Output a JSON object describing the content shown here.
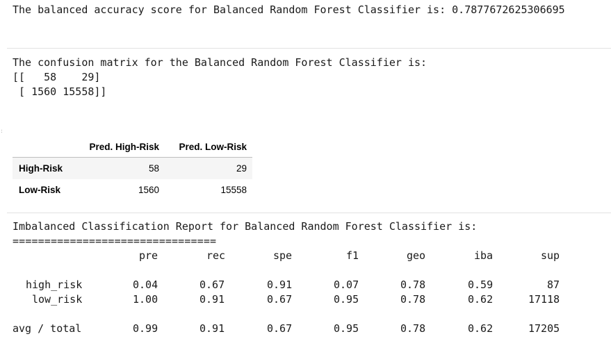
{
  "output1": {
    "accuracy_line": "The balanced accuracy score for Balanced Random Forest Classifier is: 0.7877672625306695"
  },
  "output2": {
    "title": "The confusion matrix for the Balanced Random Forest Classifier is:",
    "row1": "[[   58    29]",
    "row2": " [ 1560 15558]]"
  },
  "dataframe": {
    "columns": [
      "Pred. High-Risk",
      "Pred. Low-Risk"
    ],
    "rows": [
      {
        "index": "High-Risk",
        "values": [
          "58",
          "29"
        ]
      },
      {
        "index": "Low-Risk",
        "values": [
          "1560",
          "15558"
        ]
      }
    ]
  },
  "report": {
    "title": "Imbalanced Classification Report for Balanced Random Forest Classifier is:",
    "underline": "================================",
    "header": [
      "pre",
      "rec",
      "spe",
      "f1",
      "geo",
      "iba",
      "sup"
    ],
    "rows": [
      {
        "label": "high_risk",
        "values": [
          "0.04",
          "0.67",
          "0.91",
          "0.07",
          "0.78",
          "0.59",
          "87"
        ]
      },
      {
        "label": "low_risk",
        "values": [
          "1.00",
          "0.91",
          "0.67",
          "0.95",
          "0.78",
          "0.62",
          "17118"
        ]
      }
    ],
    "total": {
      "label": "avg / total",
      "values": [
        "0.99",
        "0.91",
        "0.67",
        "0.95",
        "0.78",
        "0.62",
        "17205"
      ]
    }
  }
}
